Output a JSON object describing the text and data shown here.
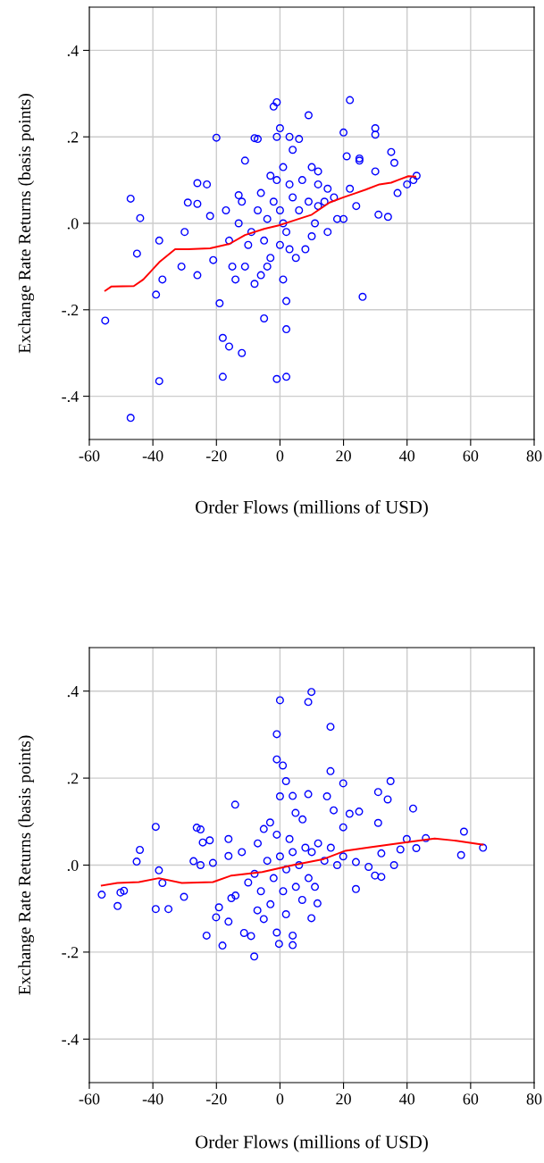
{
  "chart_data": [
    {
      "type": "scatter",
      "xlabel": "Order Flows (millions of USD)",
      "ylabel": "Exchange Rate Returns (basis points)",
      "xlim": [
        -60,
        80
      ],
      "ylim": [
        -0.5,
        0.5
      ],
      "xticks": [
        -60,
        -40,
        -20,
        0,
        20,
        40,
        60,
        80
      ],
      "yticks": [
        {
          "value": -0.4,
          "label": "-.4"
        },
        {
          "value": -0.2,
          "label": "-.2"
        },
        {
          "value": 0,
          "label": ".0"
        },
        {
          "value": 0.2,
          "label": ".2"
        },
        {
          "value": 0.4,
          "label": ".4"
        }
      ],
      "grid": true,
      "series": [
        {
          "type": "scatter",
          "marker": "circle",
          "color": "#0000ff",
          "x": [
            -55,
            -47,
            -47,
            -44,
            -45,
            -39,
            -38,
            -38,
            -37,
            -31,
            -30,
            -29,
            -26,
            -26,
            -26,
            -23,
            -22,
            -21,
            -20,
            -19,
            -18,
            -18,
            -16,
            -12,
            -11,
            -8,
            -7,
            -13,
            -15,
            -10,
            -5,
            -2,
            -1,
            -1,
            0,
            -1,
            2,
            2,
            2,
            1,
            4,
            3,
            6,
            9,
            10,
            12,
            12,
            15,
            17,
            20,
            21,
            22,
            22,
            24,
            25,
            26,
            25,
            30,
            30,
            30,
            31,
            34,
            35,
            36,
            37,
            40,
            42,
            43,
            20,
            18,
            15,
            10,
            5,
            8,
            3,
            -3,
            -6,
            -8,
            -11,
            -14,
            -4,
            -2,
            0,
            1,
            2,
            4,
            6,
            -4,
            -7,
            -9,
            -13,
            -16,
            -17,
            -12,
            -5,
            0,
            3,
            7,
            9,
            12,
            14,
            11,
            -1,
            -3,
            1,
            -6
          ],
          "values": [
            -0.225,
            -0.45,
            0.057,
            0.012,
            -0.07,
            -0.165,
            -0.04,
            -0.365,
            -0.13,
            -0.1,
            -0.02,
            0.048,
            0.093,
            -0.12,
            0.045,
            0.09,
            0.017,
            -0.085,
            0.198,
            -0.185,
            -0.355,
            -0.265,
            -0.285,
            -0.3,
            0.145,
            0.197,
            0.195,
            0.065,
            -0.1,
            -0.05,
            -0.22,
            0.27,
            0.28,
            0.2,
            0.22,
            -0.36,
            -0.355,
            -0.245,
            -0.18,
            -0.13,
            0.17,
            0.2,
            0.195,
            0.25,
            0.13,
            0.12,
            0.09,
            0.08,
            0.06,
            0.21,
            0.155,
            0.285,
            0.08,
            0.04,
            0.15,
            -0.17,
            0.145,
            0.22,
            0.205,
            0.12,
            0.02,
            0.015,
            0.165,
            0.14,
            0.07,
            0.09,
            0.1,
            0.11,
            0.01,
            0.01,
            -0.02,
            -0.03,
            -0.08,
            -0.06,
            -0.06,
            -0.08,
            -0.12,
            -0.14,
            -0.1,
            -0.13,
            -0.1,
            0.05,
            0.03,
            0.0,
            -0.02,
            0.06,
            0.03,
            0.01,
            0.03,
            -0.02,
            0.0,
            -0.04,
            0.03,
            0.05,
            -0.04,
            -0.05,
            0.09,
            0.1,
            0.05,
            0.04,
            0.05,
            0.0,
            0.1,
            0.11,
            0.13,
            0.07
          ]
        },
        {
          "type": "line",
          "color": "#ff0000",
          "x": [
            -55,
            -53,
            -46,
            -43,
            -38,
            -33,
            -29,
            -22,
            -16,
            -11,
            -5,
            0,
            5,
            10,
            15.6,
            20,
            23.5,
            27,
            31.3,
            35,
            37.1,
            40.4,
            42.6
          ],
          "values": [
            -0.156,
            -0.146,
            -0.145,
            -0.13,
            -0.09,
            -0.06,
            -0.06,
            -0.058,
            -0.048,
            -0.027,
            -0.013,
            -0.004,
            0.008,
            0.02,
            0.048,
            0.06,
            0.069,
            0.078,
            0.09,
            0.094,
            0.1,
            0.109,
            0.108
          ]
        }
      ]
    },
    {
      "type": "scatter",
      "xlabel": "Order Flows (millions of USD)",
      "ylabel": "Exchange Rate Returns (basis points)",
      "xlim": [
        -60,
        80
      ],
      "ylim": [
        -0.5,
        0.5
      ],
      "xticks": [
        -60,
        -40,
        -20,
        0,
        20,
        40,
        60,
        80
      ],
      "yticks": [
        {
          "value": -0.4,
          "label": "-.4"
        },
        {
          "value": -0.2,
          "label": "-.2"
        },
        {
          "value": 0,
          "label": ".0"
        },
        {
          "value": 0.2,
          "label": ".2"
        },
        {
          "value": 0.4,
          "label": ".4"
        }
      ],
      "grid": true,
      "series": [
        {
          "type": "scatter",
          "marker": "circle",
          "color": "#0000ff",
          "x": [
            9.9,
            0,
            8.9,
            15.9,
            -1,
            -1,
            0.9,
            15.9,
            1.9,
            19.9,
            34.8,
            30.9,
            33.9,
            41.9,
            -14.1,
            0,
            4,
            8.9,
            14.8,
            -39.1,
            -26.2,
            -25,
            -22.1,
            -24.3,
            -44.1,
            -45.1,
            -38.1,
            -37,
            -56.1,
            -50.2,
            -49.1,
            -51.1,
            -39.1,
            -35.1,
            -30.2,
            -27.2,
            -25,
            -21.1,
            -23.1,
            -18.1,
            -8.1,
            -0.3,
            4,
            4,
            -1,
            9.9,
            11.8,
            23.9,
            29.9,
            31.9,
            35.9,
            42.9,
            39.9,
            45.9,
            57.9,
            57,
            63.9,
            30.9,
            24.9,
            21.9,
            16.9,
            -16.2,
            -16.2,
            -15.3,
            -19.2,
            -20.1,
            -16.2,
            -11.3,
            -9.1,
            -7.1,
            -5.1,
            1.9,
            -5.1,
            -3.1,
            4.9,
            7.1,
            19.9,
            19.9,
            23.9,
            27.9,
            31.9,
            37.9,
            0,
            2,
            4,
            6,
            8,
            -2,
            -4,
            1,
            5,
            3,
            -6,
            -8,
            10,
            12,
            14,
            -10,
            -12,
            7,
            -3,
            16,
            18,
            9,
            -1,
            11,
            -14,
            -7
          ],
          "values": [
            0.398,
            0.379,
            0.375,
            0.318,
            0.301,
            0.243,
            0.229,
            0.216,
            0.193,
            0.188,
            0.193,
            0.168,
            0.151,
            0.13,
            0.139,
            0.158,
            0.159,
            0.163,
            0.158,
            0.088,
            0.086,
            0.082,
            0.057,
            0.052,
            0.035,
            0.008,
            -0.012,
            -0.041,
            -0.068,
            -0.063,
            -0.059,
            -0.094,
            -0.101,
            -0.101,
            -0.073,
            0.009,
            0.0,
            0.005,
            -0.162,
            -0.185,
            -0.21,
            -0.181,
            -0.162,
            -0.184,
            -0.155,
            -0.122,
            -0.088,
            -0.055,
            -0.024,
            -0.027,
            0.0,
            0.039,
            0.06,
            0.062,
            0.077,
            0.023,
            0.04,
            0.097,
            0.123,
            0.118,
            0.126,
            0.06,
            0.021,
            -0.076,
            -0.097,
            -0.12,
            -0.13,
            -0.156,
            -0.163,
            -0.104,
            -0.124,
            -0.113,
            0.083,
            0.098,
            0.12,
            0.105,
            0.087,
            0.02,
            0.007,
            -0.004,
            0.027,
            0.036,
            0.02,
            -0.01,
            0.03,
            0.0,
            0.04,
            -0.03,
            0.01,
            -0.06,
            -0.05,
            0.06,
            -0.06,
            -0.02,
            0.03,
            0.05,
            0.01,
            -0.04,
            0.03,
            -0.08,
            -0.09,
            0.04,
            0.0,
            -0.03,
            0.07,
            -0.05,
            -0.07,
            0.05
          ]
        },
        {
          "type": "line",
          "color": "#ff0000",
          "x": [
            -56.1,
            -51.2,
            -44.4,
            -38.1,
            -30.9,
            -21.1,
            -15.3,
            -5.6,
            4.1,
            13.8,
            20.6,
            28.4,
            38.1,
            48.7,
            55.5,
            63.8
          ],
          "values": [
            -0.047,
            -0.041,
            -0.039,
            -0.03,
            -0.041,
            -0.039,
            -0.024,
            -0.016,
            0.0,
            0.014,
            0.033,
            0.041,
            0.051,
            0.061,
            0.056,
            0.047
          ]
        }
      ]
    }
  ]
}
